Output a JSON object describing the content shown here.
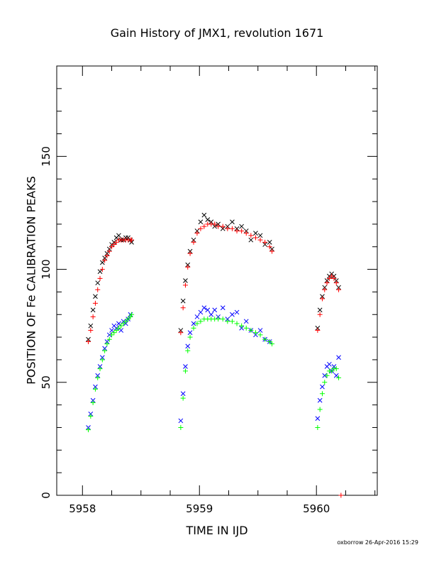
{
  "chart_data": {
    "type": "scatter",
    "title": "Gain History of JMX1, revolution 1671",
    "xlabel": "TIME IN IJD",
    "ylabel": "POSITION OF Fe CALIBRATION PEAKS",
    "xlim": [
      5957.78,
      5960.52
    ],
    "ylim": [
      0,
      190
    ],
    "x_ticks": [
      5958,
      5959,
      5960
    ],
    "x_tick_labels": [
      "5958",
      "5959",
      "5960"
    ],
    "y_ticks": [
      0,
      50,
      100,
      150
    ],
    "y_tick_labels": [
      "0",
      "50",
      "100",
      "150"
    ],
    "grid": false,
    "series": [
      {
        "color": "#000000",
        "marker": "x",
        "points": [
          [
            5958.05,
            69
          ],
          [
            5958.07,
            75
          ],
          [
            5958.09,
            82
          ],
          [
            5958.11,
            88
          ],
          [
            5958.13,
            94
          ],
          [
            5958.15,
            99
          ],
          [
            5958.17,
            103
          ],
          [
            5958.19,
            105
          ],
          [
            5958.21,
            107
          ],
          [
            5958.23,
            109
          ],
          [
            5958.25,
            111
          ],
          [
            5958.27,
            112
          ],
          [
            5958.29,
            114
          ],
          [
            5958.31,
            115
          ],
          [
            5958.33,
            113
          ],
          [
            5958.35,
            113
          ],
          [
            5958.37,
            114
          ],
          [
            5958.39,
            114
          ],
          [
            5958.41,
            113
          ],
          [
            5958.42,
            112
          ],
          [
            5958.84,
            73
          ],
          [
            5958.86,
            86
          ],
          [
            5958.88,
            95
          ],
          [
            5958.9,
            102
          ],
          [
            5958.92,
            108
          ],
          [
            5958.95,
            113
          ],
          [
            5958.98,
            117
          ],
          [
            5959.01,
            121
          ],
          [
            5959.04,
            124
          ],
          [
            5959.07,
            122
          ],
          [
            5959.1,
            121
          ],
          [
            5959.13,
            119
          ],
          [
            5959.16,
            120
          ],
          [
            5959.2,
            118
          ],
          [
            5959.24,
            119
          ],
          [
            5959.28,
            121
          ],
          [
            5959.32,
            118
          ],
          [
            5959.36,
            119
          ],
          [
            5959.4,
            117
          ],
          [
            5959.44,
            113
          ],
          [
            5959.48,
            116
          ],
          [
            5959.52,
            115
          ],
          [
            5959.56,
            111
          ],
          [
            5959.6,
            112
          ],
          [
            5959.62,
            109
          ],
          [
            5960.01,
            74
          ],
          [
            5960.03,
            82
          ],
          [
            5960.05,
            88
          ],
          [
            5960.07,
            92
          ],
          [
            5960.09,
            95
          ],
          [
            5960.11,
            97
          ],
          [
            5960.13,
            98
          ],
          [
            5960.15,
            97
          ],
          [
            5960.17,
            95
          ],
          [
            5960.19,
            92
          ]
        ]
      },
      {
        "color": "#ff0000",
        "marker": "+",
        "points": [
          [
            5958.05,
            68
          ],
          [
            5958.07,
            73
          ],
          [
            5958.09,
            79
          ],
          [
            5958.11,
            85
          ],
          [
            5958.13,
            91
          ],
          [
            5958.15,
            96
          ],
          [
            5958.17,
            100
          ],
          [
            5958.19,
            104
          ],
          [
            5958.21,
            106
          ],
          [
            5958.23,
            108
          ],
          [
            5958.25,
            110
          ],
          [
            5958.27,
            111
          ],
          [
            5958.29,
            112
          ],
          [
            5958.31,
            113
          ],
          [
            5958.33,
            113
          ],
          [
            5958.35,
            113
          ],
          [
            5958.37,
            113
          ],
          [
            5958.39,
            113
          ],
          [
            5958.41,
            113
          ],
          [
            5958.42,
            113
          ],
          [
            5958.84,
            72
          ],
          [
            5958.86,
            83
          ],
          [
            5958.88,
            93
          ],
          [
            5958.9,
            101
          ],
          [
            5958.92,
            107
          ],
          [
            5958.95,
            112
          ],
          [
            5958.98,
            116
          ],
          [
            5959.01,
            118
          ],
          [
            5959.04,
            119
          ],
          [
            5959.07,
            120
          ],
          [
            5959.1,
            120
          ],
          [
            5959.13,
            120
          ],
          [
            5959.16,
            119
          ],
          [
            5959.2,
            119
          ],
          [
            5959.24,
            118
          ],
          [
            5959.28,
            118
          ],
          [
            5959.32,
            117
          ],
          [
            5959.36,
            117
          ],
          [
            5959.4,
            116
          ],
          [
            5959.44,
            115
          ],
          [
            5959.48,
            114
          ],
          [
            5959.52,
            113
          ],
          [
            5959.56,
            112
          ],
          [
            5959.6,
            110
          ],
          [
            5959.62,
            108
          ],
          [
            5960.01,
            73
          ],
          [
            5960.03,
            80
          ],
          [
            5960.05,
            87
          ],
          [
            5960.07,
            91
          ],
          [
            5960.09,
            94
          ],
          [
            5960.11,
            96
          ],
          [
            5960.13,
            97
          ],
          [
            5960.15,
            96
          ],
          [
            5960.17,
            94
          ],
          [
            5960.19,
            91
          ],
          [
            5960.21,
            0
          ]
        ]
      },
      {
        "color": "#0000ff",
        "marker": "x",
        "points": [
          [
            5958.05,
            30
          ],
          [
            5958.07,
            36
          ],
          [
            5958.09,
            42
          ],
          [
            5958.11,
            48
          ],
          [
            5958.13,
            53
          ],
          [
            5958.15,
            57
          ],
          [
            5958.17,
            61
          ],
          [
            5958.19,
            65
          ],
          [
            5958.21,
            68
          ],
          [
            5958.23,
            71
          ],
          [
            5958.25,
            73
          ],
          [
            5958.27,
            75
          ],
          [
            5958.29,
            74
          ],
          [
            5958.31,
            76
          ],
          [
            5958.33,
            73
          ],
          [
            5958.35,
            77
          ],
          [
            5958.37,
            76
          ],
          [
            5958.39,
            78
          ],
          [
            5958.41,
            80
          ],
          [
            5958.84,
            33
          ],
          [
            5958.86,
            45
          ],
          [
            5958.88,
            57
          ],
          [
            5958.9,
            66
          ],
          [
            5958.92,
            72
          ],
          [
            5958.95,
            76
          ],
          [
            5958.98,
            79
          ],
          [
            5959.01,
            81
          ],
          [
            5959.04,
            83
          ],
          [
            5959.07,
            82
          ],
          [
            5959.1,
            80
          ],
          [
            5959.13,
            82
          ],
          [
            5959.16,
            79
          ],
          [
            5959.2,
            83
          ],
          [
            5959.24,
            78
          ],
          [
            5959.28,
            80
          ],
          [
            5959.32,
            81
          ],
          [
            5959.36,
            74
          ],
          [
            5959.4,
            77
          ],
          [
            5959.44,
            73
          ],
          [
            5959.48,
            71
          ],
          [
            5959.52,
            73
          ],
          [
            5959.56,
            69
          ],
          [
            5959.6,
            68
          ],
          [
            5960.01,
            34
          ],
          [
            5960.03,
            42
          ],
          [
            5960.05,
            48
          ],
          [
            5960.07,
            53
          ],
          [
            5960.09,
            57
          ],
          [
            5960.11,
            58
          ],
          [
            5960.13,
            55
          ],
          [
            5960.15,
            57
          ],
          [
            5960.17,
            53
          ],
          [
            5960.19,
            61
          ]
        ]
      },
      {
        "color": "#00ff00",
        "marker": "+",
        "points": [
          [
            5958.05,
            29
          ],
          [
            5958.07,
            35
          ],
          [
            5958.09,
            41
          ],
          [
            5958.11,
            47
          ],
          [
            5958.13,
            52
          ],
          [
            5958.15,
            56
          ],
          [
            5958.17,
            60
          ],
          [
            5958.19,
            64
          ],
          [
            5958.21,
            67
          ],
          [
            5958.23,
            69
          ],
          [
            5958.25,
            71
          ],
          [
            5958.27,
            72
          ],
          [
            5958.29,
            73
          ],
          [
            5958.31,
            74
          ],
          [
            5958.33,
            75
          ],
          [
            5958.35,
            76
          ],
          [
            5958.37,
            77
          ],
          [
            5958.39,
            78
          ],
          [
            5958.41,
            79
          ],
          [
            5958.42,
            80
          ],
          [
            5958.84,
            30
          ],
          [
            5958.86,
            43
          ],
          [
            5958.88,
            55
          ],
          [
            5958.9,
            64
          ],
          [
            5958.92,
            70
          ],
          [
            5958.95,
            74
          ],
          [
            5958.98,
            76
          ],
          [
            5959.01,
            77
          ],
          [
            5959.04,
            78
          ],
          [
            5959.07,
            78
          ],
          [
            5959.1,
            78
          ],
          [
            5959.13,
            78
          ],
          [
            5959.16,
            78
          ],
          [
            5959.2,
            78
          ],
          [
            5959.24,
            77
          ],
          [
            5959.28,
            77
          ],
          [
            5959.32,
            76
          ],
          [
            5959.36,
            75
          ],
          [
            5959.4,
            74
          ],
          [
            5959.44,
            73
          ],
          [
            5959.48,
            72
          ],
          [
            5959.52,
            71
          ],
          [
            5959.56,
            69
          ],
          [
            5959.6,
            68
          ],
          [
            5959.62,
            67
          ],
          [
            5960.01,
            30
          ],
          [
            5960.03,
            38
          ],
          [
            5960.05,
            45
          ],
          [
            5960.07,
            50
          ],
          [
            5960.09,
            53
          ],
          [
            5960.11,
            55
          ],
          [
            5960.13,
            55
          ],
          [
            5960.15,
            56
          ],
          [
            5960.17,
            56
          ],
          [
            5960.19,
            52
          ]
        ]
      }
    ]
  },
  "footer": "oxborrow 26-Apr-2016 15:29"
}
